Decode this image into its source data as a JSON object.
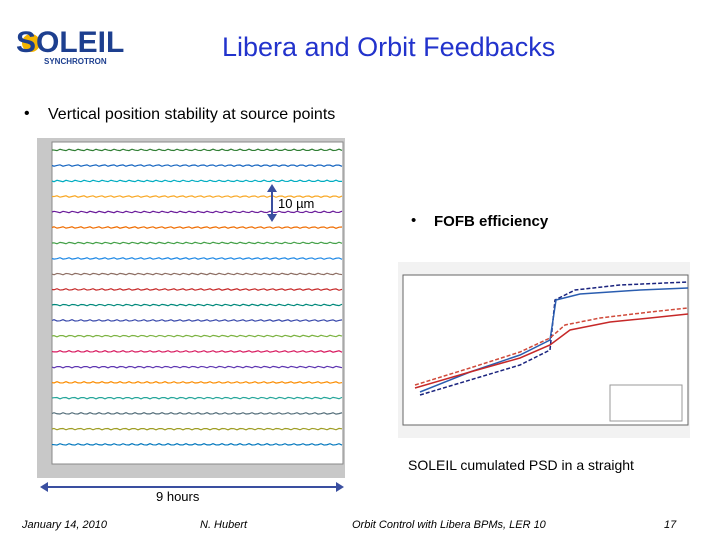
{
  "header": {
    "logo_name": "SOLEIL",
    "logo_sub": "SYNCHROTRON",
    "title": "Libera and Orbit Feedbacks"
  },
  "body": {
    "bullet_main": "Vertical position stability at source points",
    "scale_note": "10 µm",
    "bullet_right": "FOFB efficiency",
    "right_caption": "SOLEIL cumulated PSD in a straight",
    "duration_note": "9 hours"
  },
  "footer": {
    "date": "January 14, 2010",
    "author": "N. Hubert",
    "event": "Orbit Control with Libera BPMs, LER 10",
    "page": "17"
  }
}
